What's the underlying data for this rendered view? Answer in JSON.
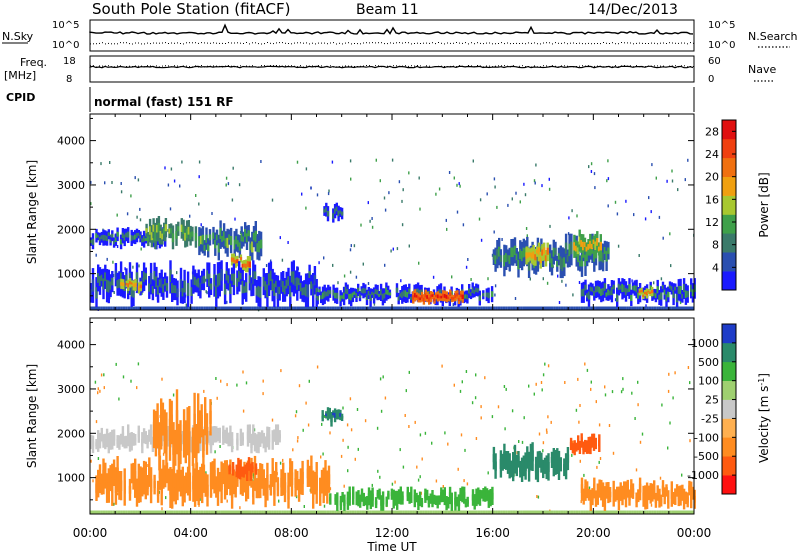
{
  "header": {
    "station": "South Pole Station (fitACF)",
    "beam": "Beam 11",
    "date": "14/Dec/2013"
  },
  "params": {
    "nsky_label": "N.Sky",
    "nsky_ticks": [
      "10^5",
      "10^0"
    ],
    "nsearch_label": "N.Search",
    "nsearch_ticks": [
      "10^5",
      "10^0"
    ],
    "freq_label_1": "Freq.",
    "freq_label_2": "[MHz]",
    "freq_ticks": [
      "18",
      "8"
    ],
    "nave_label": "Nave",
    "nave_ticks": [
      "60",
      "0"
    ],
    "cpid_label": "CPID",
    "cpid_value": "normal (fast) 151 RF"
  },
  "colors": {
    "power": [
      "#1a1aff",
      "#2a4fb0",
      "#3a7a6a",
      "#3fa04a",
      "#a8c830",
      "#f0a010",
      "#f07010",
      "#f04010",
      "#e01010"
    ],
    "velocity": [
      "#ff1010",
      "#ff5a10",
      "#ff8c20",
      "#ffb050",
      "#c8c8c8",
      "#9fd070",
      "#3ab43a",
      "#2a8a6a",
      "#1e3cc8"
    ]
  },
  "chart_data": [
    {
      "type": "heatmap",
      "quantity": "power",
      "ylabel": "Slant Range [km]",
      "xlabel": "Time UT",
      "xlim": [
        "00:00",
        "00:00"
      ],
      "ylim": [
        180,
        4600
      ],
      "xticks": [
        "00:00",
        "04:00",
        "08:00",
        "12:00",
        "16:00",
        "20:00",
        "00:00"
      ],
      "yticks": [
        1000,
        2000,
        3000,
        4000
      ],
      "colorbar_label": "Power [dB]",
      "colorbar_ticks": [
        4,
        8,
        12,
        16,
        20,
        24,
        28
      ],
      "colorbar_range": [
        0,
        30
      ],
      "regions": [
        {
          "t0": 0.0,
          "t1": 3.0,
          "r0": 1550,
          "r1": 2050,
          "value": 9
        },
        {
          "t0": 2.2,
          "t1": 4.2,
          "r0": 1550,
          "r1": 2300,
          "value": 13
        },
        {
          "t0": 4.3,
          "t1": 6.8,
          "r0": 1300,
          "r1": 2200,
          "value": 12
        },
        {
          "t0": 5.6,
          "t1": 6.4,
          "r0": 1000,
          "r1": 1500,
          "value": 22
        },
        {
          "t0": 9.2,
          "t1": 10.0,
          "r0": 2150,
          "r1": 2600,
          "value": 8
        },
        {
          "t0": 0.0,
          "t1": 9.0,
          "r0": 250,
          "r1": 1300,
          "value": 8
        },
        {
          "t0": 1.2,
          "t1": 2.0,
          "r0": 550,
          "r1": 900,
          "value": 20
        },
        {
          "t0": 9.0,
          "t1": 16.0,
          "r0": 250,
          "r1": 800,
          "value": 9
        },
        {
          "t0": 12.8,
          "t1": 14.8,
          "r0": 300,
          "r1": 650,
          "value": 26
        },
        {
          "t0": 16.0,
          "t1": 20.6,
          "r0": 900,
          "r1": 1900,
          "value": 11
        },
        {
          "t0": 17.3,
          "t1": 18.2,
          "r0": 1100,
          "r1": 1700,
          "value": 20
        },
        {
          "t0": 19.2,
          "t1": 20.3,
          "r0": 1300,
          "r1": 2000,
          "value": 18
        },
        {
          "t0": 19.5,
          "t1": 24.0,
          "r0": 250,
          "r1": 900,
          "value": 9
        },
        {
          "t0": 21.8,
          "t1": 22.3,
          "r0": 400,
          "r1": 700,
          "value": 22
        }
      ]
    },
    {
      "type": "heatmap",
      "quantity": "velocity",
      "ylabel": "Slant Range [km]",
      "xlabel": "Time UT",
      "xlim": [
        "00:00",
        "00:00"
      ],
      "ylim": [
        180,
        4600
      ],
      "xticks": [
        "00:00",
        "04:00",
        "08:00",
        "12:00",
        "16:00",
        "20:00",
        "00:00"
      ],
      "yticks": [
        1000,
        2000,
        3000,
        4000
      ],
      "colorbar_label": "Velocity [m s^-1]",
      "colorbar_ticks": [
        1000,
        500,
        100,
        25,
        -25,
        -100,
        -500,
        -1000
      ],
      "regions": [
        {
          "t0": 0.0,
          "t1": 7.5,
          "r0": 1550,
          "r1": 2200,
          "value": 0
        },
        {
          "t0": 0.0,
          "t1": 9.5,
          "r0": 300,
          "r1": 1500,
          "value": -300
        },
        {
          "t0": 2.5,
          "t1": 4.8,
          "r0": 1000,
          "r1": 3000,
          "value": -300
        },
        {
          "t0": 5.5,
          "t1": 6.6,
          "r0": 900,
          "r1": 1500,
          "value": -700
        },
        {
          "t0": 9.2,
          "t1": 10.0,
          "r0": 2150,
          "r1": 2600,
          "value": 900
        },
        {
          "t0": 9.5,
          "t1": 16.0,
          "r0": 250,
          "r1": 800,
          "value": 150
        },
        {
          "t0": 16.0,
          "t1": 19.0,
          "r0": 900,
          "r1": 1800,
          "value": 800
        },
        {
          "t0": 19.0,
          "t1": 20.2,
          "r0": 1500,
          "r1": 2000,
          "value": -800
        },
        {
          "t0": 19.5,
          "t1": 24.0,
          "r0": 250,
          "r1": 1000,
          "value": -300
        }
      ]
    }
  ]
}
